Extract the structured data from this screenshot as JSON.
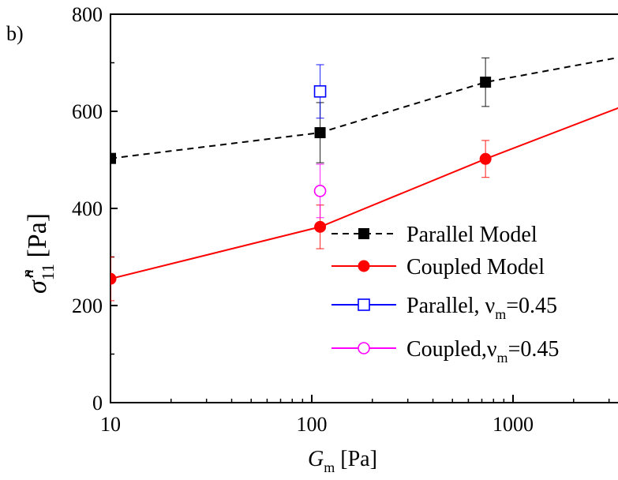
{
  "panel_label": "b)",
  "chart_data": {
    "type": "line",
    "xscale": "log",
    "xlim": [
      10,
      4500
    ],
    "ylim": [
      0,
      800
    ],
    "xticks": [
      10,
      100,
      1000
    ],
    "xtick_labels": [
      "10",
      "100",
      "1000"
    ],
    "yticks": [
      0,
      200,
      400,
      600,
      800
    ],
    "ytick_labels": [
      "0",
      "200",
      "400",
      "600",
      "800"
    ],
    "xlabel": {
      "main": "G",
      "sub": "m",
      "unit": " [Pa]"
    },
    "ylabel": {
      "main": "σ̂",
      "sup": "n",
      "sub": "11",
      "unit": " [Pa]"
    },
    "grid": false,
    "legend_position": "lower-right",
    "series": [
      {
        "name": "Parallel Model",
        "color": "#000000",
        "line": "dashed",
        "marker": "filled-square",
        "x": [
          10,
          110,
          730,
          4400
        ],
        "y": [
          503,
          556,
          660,
          720
        ],
        "err": [
          null,
          62,
          50,
          45
        ]
      },
      {
        "name": "Coupled Model",
        "color": "#ff0000",
        "line": "solid",
        "marker": "filled-circle",
        "x": [
          10,
          110,
          730,
          4400
        ],
        "y": [
          255,
          362,
          502,
          626
        ],
        "err": [
          45,
          45,
          38,
          52
        ]
      },
      {
        "name": "Parallel, ν =0.45",
        "legend_sub": "m",
        "color": "#0000ff",
        "line": "solid",
        "marker": "open-square",
        "x": [
          110
        ],
        "y": [
          641
        ],
        "err": [
          55
        ]
      },
      {
        "name": "Coupled,ν =0.45",
        "legend_sub": "m",
        "color": "#ff00ff",
        "line": "solid",
        "marker": "open-circle",
        "x": [
          110
        ],
        "y": [
          436
        ],
        "err": [
          55
        ]
      }
    ]
  }
}
